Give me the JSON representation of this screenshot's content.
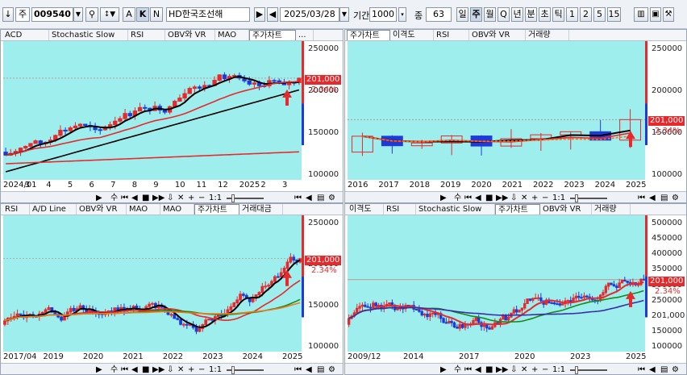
{
  "toolbar": {
    "code": "009540",
    "code_label": "주",
    "stock_name": "HD한국조선해",
    "date": "2025/03/28",
    "period_label": "기간",
    "period_value": "1000",
    "jong_label": "종",
    "jong_value": "63",
    "period_buttons": [
      "일",
      "주",
      "월",
      "Q",
      "년",
      "분",
      "초",
      "틱",
      "1",
      "2",
      "5",
      "15"
    ],
    "active_period": "주",
    "letter_buttons": [
      "A",
      "K",
      "N"
    ]
  },
  "panels": [
    {
      "tabs": [
        "ACD",
        "Stochastic Slow",
        "RSI",
        "OBV와 VR",
        "MAO",
        "주가차트",
        "..."
      ],
      "active_tab": "주가차트",
      "y_ticks": [
        "250000",
        "200000",
        "150000",
        "100000"
      ],
      "price": "201,000",
      "pct": "2.34%",
      "x_ticks": [
        "2024/01",
        "3",
        "4",
        "5",
        "6",
        "7",
        "8",
        "9",
        "10",
        "11",
        "12",
        "2025",
        "2",
        "3"
      ]
    },
    {
      "tabs": [
        "주가차트",
        "이격도",
        "RSI",
        "OBV와 VR",
        "거래량"
      ],
      "active_tab": "주가차트",
      "y_ticks": [
        "250000",
        "200000",
        "150000",
        "100000"
      ],
      "price": "201,000",
      "pct": "2.34%",
      "x_ticks": [
        "2016",
        "2017",
        "2018",
        "2019",
        "2020",
        "2021",
        "2022",
        "2023",
        "2024",
        "2025"
      ]
    },
    {
      "tabs": [
        "RSI",
        "A/D Line",
        "OBV와 VR",
        "MAO",
        "MAO",
        "주가차트",
        "거래대금"
      ],
      "active_tab": "주가차트",
      "y_ticks": [
        "250000",
        "200000",
        "150000",
        "100000"
      ],
      "price": "201,000",
      "pct": "2.34%",
      "x_ticks": [
        "2017/04",
        "2019",
        "2020",
        "2021",
        "2022",
        "2023",
        "2024",
        "2025"
      ]
    },
    {
      "tabs": [
        "이격도",
        "RSI",
        "Stochastic Slow",
        "주가차트",
        "OBV와 VR",
        "거래량"
      ],
      "active_tab": "주가차트",
      "y_ticks": [
        "500000",
        "450000",
        "400000",
        "350000",
        "300000",
        "250000",
        "201,000",
        "150000",
        "100000"
      ],
      "price": "201,000",
      "pct": "2.34%",
      "x_ticks": [
        "2009/12",
        "2014",
        "2017",
        "2020",
        "2023",
        "2025"
      ]
    }
  ],
  "controls": {
    "minus": "수",
    "ratio": "1:1",
    "plus": "+"
  },
  "colors": {
    "plot_bg": "#9eeeee",
    "up": "#e8282b",
    "down": "#1e3ad8",
    "ma_black": "#000000",
    "ma_red": "#e8282b",
    "ma_green": "#1a8a1a",
    "ma_orange": "#f07818",
    "ma_purple": "#3c2ca8"
  }
}
